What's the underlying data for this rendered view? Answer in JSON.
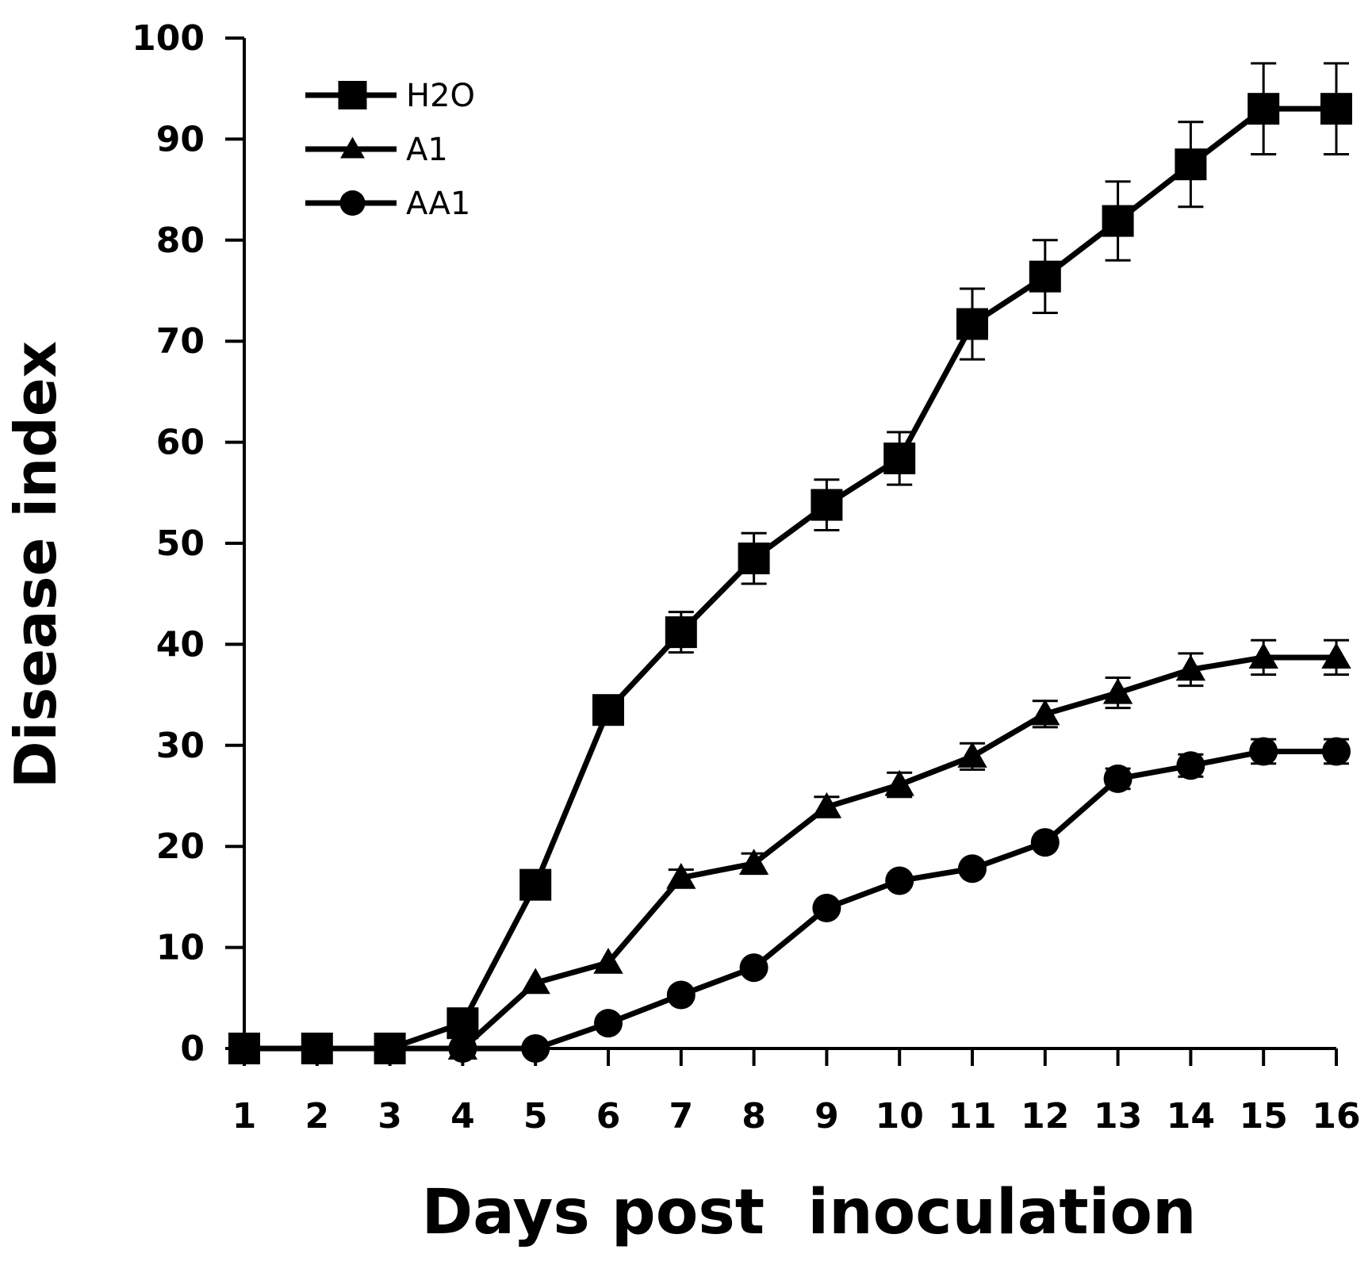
{
  "chart_data": {
    "type": "line",
    "title": "",
    "xlabel": "Days post  inoculation",
    "ylabel": "Disease index",
    "x": [
      1,
      2,
      3,
      4,
      5,
      6,
      7,
      8,
      9,
      10,
      11,
      12,
      13,
      14,
      15,
      16
    ],
    "xticks": [
      "1",
      "2",
      "3",
      "4",
      "5",
      "6",
      "7",
      "8",
      "9",
      "10",
      "11",
      "12",
      "13",
      "14",
      "15",
      "16"
    ],
    "yticks": [
      "0",
      "10",
      "20",
      "30",
      "40",
      "50",
      "60",
      "70",
      "80",
      "90",
      "100"
    ],
    "ylim": [
      0,
      100
    ],
    "grid": false,
    "legend": "top-left",
    "series": [
      {
        "name": "H2O",
        "marker": "square",
        "x": [
          1,
          2,
          3,
          4,
          5,
          6,
          7,
          8,
          9,
          10,
          11,
          12,
          13,
          14,
          15,
          16
        ],
        "values": [
          0,
          0,
          0,
          2.5,
          16.2,
          33.5,
          41.2,
          48.5,
          53.8,
          58.4,
          71.7,
          76.4,
          81.9,
          87.5,
          93.0,
          93.0
        ],
        "errors": [
          0,
          0,
          0,
          0,
          0,
          1.2,
          2.0,
          2.5,
          2.5,
          2.6,
          3.5,
          3.6,
          3.9,
          4.2,
          4.5,
          4.5
        ]
      },
      {
        "name": "A1",
        "marker": "triangle",
        "x": [
          1,
          2,
          3,
          4,
          5,
          6,
          7,
          8,
          9,
          10,
          11,
          12,
          13,
          14,
          15,
          16
        ],
        "values": [
          0,
          0,
          0,
          0,
          6.5,
          8.5,
          16.9,
          18.3,
          23.9,
          26.1,
          28.9,
          33.1,
          35.2,
          37.5,
          38.7,
          38.7
        ],
        "errors": [
          0,
          0,
          0,
          0,
          0,
          0,
          0.8,
          1.0,
          1.0,
          1.2,
          1.3,
          1.3,
          1.5,
          1.6,
          1.7,
          1.7
        ]
      },
      {
        "name": "AA1",
        "marker": "circle",
        "x": [
          1,
          2,
          3,
          4,
          5,
          6,
          7,
          8,
          9,
          10,
          11,
          12,
          13,
          14,
          15,
          16
        ],
        "values": [
          0,
          0,
          0,
          0,
          0,
          2.5,
          5.3,
          8.0,
          13.9,
          16.6,
          17.8,
          20.4,
          26.7,
          28.0,
          29.4,
          29.4
        ],
        "errors": [
          0,
          0,
          0,
          0,
          0,
          0,
          0,
          0,
          0,
          0,
          0,
          0,
          1.0,
          1.1,
          1.2,
          1.2
        ]
      }
    ]
  }
}
